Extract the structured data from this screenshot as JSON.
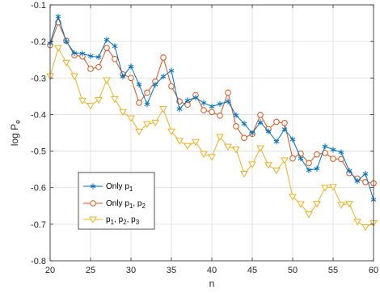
{
  "chart_data": {
    "type": "line",
    "xlabel": "n",
    "ylabel": "log P",
    "ylabel_sub": "e",
    "xlim": [
      20,
      60
    ],
    "ylim": [
      -0.8,
      -0.1
    ],
    "xticks": [
      "20",
      "25",
      "30",
      "35",
      "40",
      "45",
      "50",
      "55",
      "60"
    ],
    "yticks": [
      "-0.1",
      "-0.2",
      "-0.3",
      "-0.4",
      "-0.5",
      "-0.6",
      "-0.7",
      "-0.8"
    ],
    "grid": true,
    "legend_location": "lower-left",
    "x": [
      20,
      21,
      22,
      23,
      24,
      25,
      26,
      27,
      28,
      29,
      30,
      31,
      32,
      33,
      34,
      35,
      36,
      37,
      38,
      39,
      40,
      41,
      42,
      43,
      44,
      45,
      46,
      47,
      48,
      49,
      50,
      51,
      52,
      53,
      54,
      55,
      56,
      57,
      58,
      59,
      60
    ],
    "series": [
      {
        "name": "Only p1",
        "legend": {
          "base": "Only p",
          "sub": "1"
        },
        "color": "#0072BD",
        "marker": "asterisk",
        "values": [
          -0.205,
          -0.132,
          -0.2,
          -0.232,
          -0.233,
          -0.24,
          -0.243,
          -0.195,
          -0.213,
          -0.296,
          -0.268,
          -0.318,
          -0.372,
          -0.318,
          -0.296,
          -0.28,
          -0.385,
          -0.361,
          -0.354,
          -0.368,
          -0.378,
          -0.371,
          -0.364,
          -0.402,
          -0.425,
          -0.451,
          -0.421,
          -0.446,
          -0.474,
          -0.44,
          -0.468,
          -0.52,
          -0.552,
          -0.548,
          -0.487,
          -0.496,
          -0.503,
          -0.554,
          -0.582,
          -0.562,
          -0.633
        ]
      },
      {
        "name": "Only p1, p2",
        "legend": {
          "base": "Only p",
          "sub": "1",
          "mid": ", p",
          "sub2": "2"
        },
        "color": "#D95319",
        "marker": "circle",
        "values": [
          -0.21,
          -0.148,
          -0.198,
          -0.238,
          -0.241,
          -0.275,
          -0.27,
          -0.218,
          -0.248,
          -0.29,
          -0.3,
          -0.368,
          -0.34,
          -0.31,
          -0.244,
          -0.323,
          -0.364,
          -0.373,
          -0.347,
          -0.388,
          -0.393,
          -0.403,
          -0.34,
          -0.432,
          -0.464,
          -0.453,
          -0.401,
          -0.44,
          -0.42,
          -0.423,
          -0.52,
          -0.507,
          -0.533,
          -0.509,
          -0.505,
          -0.521,
          -0.522,
          -0.56,
          -0.575,
          -0.585,
          -0.588
        ]
      },
      {
        "name": "p1, p2, p3",
        "legend": {
          "base": "p",
          "sub": "1",
          "mid": ", p",
          "sub2": "2",
          "mid2": ", p",
          "sub3": "3"
        },
        "color": "#EDB120",
        "marker": "triangle-down",
        "values": [
          -0.295,
          -0.218,
          -0.258,
          -0.295,
          -0.362,
          -0.376,
          -0.36,
          -0.306,
          -0.358,
          -0.393,
          -0.41,
          -0.447,
          -0.426,
          -0.422,
          -0.385,
          -0.446,
          -0.472,
          -0.486,
          -0.475,
          -0.508,
          -0.516,
          -0.461,
          -0.488,
          -0.495,
          -0.562,
          -0.536,
          -0.492,
          -0.538,
          -0.553,
          -0.525,
          -0.625,
          -0.645,
          -0.673,
          -0.644,
          -0.6,
          -0.598,
          -0.647,
          -0.644,
          -0.693,
          -0.708,
          -0.697
        ]
      }
    ]
  }
}
